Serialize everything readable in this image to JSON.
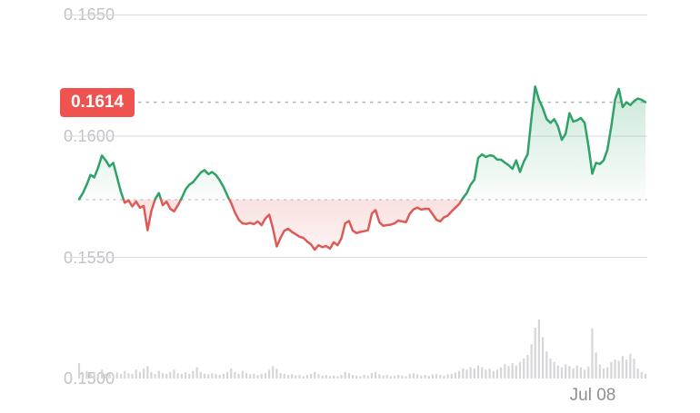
{
  "chart_data": {
    "type": "area",
    "title": "Intraday price chart with baseline coloring and volume bars",
    "grid": "horizontal",
    "legend": "none",
    "x": {
      "tick_labels": [
        "Jul 08"
      ]
    },
    "y": {
      "tick_labels": [
        "0.1650",
        "0.1600",
        "0.1550",
        "0.1500"
      ],
      "ticks": [
        0.165,
        0.16,
        0.155,
        0.15
      ],
      "range": [
        0.15,
        0.1656
      ]
    },
    "baseline_price": 0.15738,
    "current_price": 0.1614,
    "current_price_label": "0.1614",
    "series": [
      {
        "name": "price",
        "values": [
          0.1574,
          0.15765,
          0.158,
          0.1584,
          0.1583,
          0.1587,
          0.1592,
          0.159,
          0.15875,
          0.1589,
          0.1583,
          0.1577,
          0.15725,
          0.15735,
          0.1571,
          0.1573,
          0.15705,
          0.15712,
          0.15612,
          0.1569,
          0.1574,
          0.15765,
          0.15715,
          0.1573,
          0.157,
          0.1569,
          0.15715,
          0.15745,
          0.1578,
          0.158,
          0.1581,
          0.1583,
          0.1585,
          0.1586,
          0.15843,
          0.15852,
          0.1584,
          0.15818,
          0.1579,
          0.15755,
          0.15725,
          0.15685,
          0.15655,
          0.1564,
          0.15638,
          0.15642,
          0.15637,
          0.15648,
          0.15633,
          0.1566,
          0.15676,
          0.1562,
          0.15545,
          0.1558,
          0.1561,
          0.15618,
          0.15605,
          0.15595,
          0.15585,
          0.1558,
          0.15565,
          0.15553,
          0.15532,
          0.1555,
          0.15542,
          0.15547,
          0.15536,
          0.15562,
          0.1555,
          0.15578,
          0.1564,
          0.1565,
          0.1561,
          0.156,
          0.15605,
          0.15608,
          0.15612,
          0.1568,
          0.15695,
          0.15645,
          0.1563,
          0.15633,
          0.15635,
          0.1564,
          0.15652,
          0.15648,
          0.15645,
          0.1568,
          0.15698,
          0.15705,
          0.15697,
          0.157,
          0.157,
          0.15678,
          0.15655,
          0.15648,
          0.15665,
          0.15672,
          0.1569,
          0.15705,
          0.1572,
          0.15745,
          0.15765,
          0.158,
          0.1582,
          0.1591,
          0.15925,
          0.15914,
          0.15921,
          0.15918,
          0.15903,
          0.15903,
          0.15891,
          0.1588,
          0.15865,
          0.159,
          0.15852,
          0.15895,
          0.15925,
          0.16075,
          0.16205,
          0.1615,
          0.16115,
          0.1607,
          0.16055,
          0.1607,
          0.1604,
          0.15985,
          0.1601,
          0.16095,
          0.1606,
          0.16065,
          0.16075,
          0.16055,
          0.1596,
          0.15845,
          0.1589,
          0.15885,
          0.159,
          0.15945,
          0.1604,
          0.1615,
          0.16195,
          0.1612,
          0.1614,
          0.16128,
          0.16145,
          0.16155,
          0.1615,
          0.1614
        ]
      },
      {
        "name": "volume_pct_of_max",
        "values": [
          26,
          9,
          13,
          8,
          11,
          8,
          15,
          8,
          9,
          7,
          11,
          8,
          13,
          9,
          8,
          15,
          11,
          17,
          21,
          11,
          8,
          13,
          9,
          8,
          11,
          15,
          9,
          8,
          11,
          8,
          13,
          19,
          11,
          8,
          7,
          9,
          8,
          6,
          8,
          11,
          17,
          11,
          8,
          13,
          9,
          7,
          8,
          6,
          8,
          9,
          15,
          21,
          17,
          9,
          8,
          6,
          7,
          5,
          6,
          4,
          6,
          8,
          11,
          7,
          5,
          6,
          4,
          5,
          4,
          6,
          11,
          9,
          6,
          5,
          4,
          6,
          5,
          9,
          11,
          7,
          5,
          6,
          4,
          5,
          6,
          5,
          4,
          8,
          9,
          7,
          5,
          6,
          5,
          7,
          8,
          6,
          5,
          7,
          8,
          10,
          13,
          17,
          15,
          19,
          17,
          22,
          19,
          15,
          17,
          13,
          15,
          19,
          24,
          21,
          26,
          22,
          28,
          34,
          40,
          58,
          86,
          100,
          70,
          46,
          34,
          28,
          22,
          19,
          24,
          21,
          17,
          22,
          19,
          15,
          20,
          85,
          44,
          24,
          17,
          19,
          28,
          32,
          30,
          38,
          32,
          42,
          34,
          17,
          11,
          8
        ]
      }
    ],
    "colors": {
      "up": "#2ea267",
      "down": "#dd5a56",
      "up_fill": "46,162,103",
      "down_fill": "221,90,86",
      "badge_bg": "#ef5350",
      "badge_text": "#ffffff",
      "grid_line": "#dadade",
      "baseline_dash": "#c6c6ca",
      "price_dash": "#b4b4b9",
      "axis_text": "#c2c2c7",
      "date_text": "#8f8f93",
      "volume_bar": "#d6d6d9"
    }
  }
}
